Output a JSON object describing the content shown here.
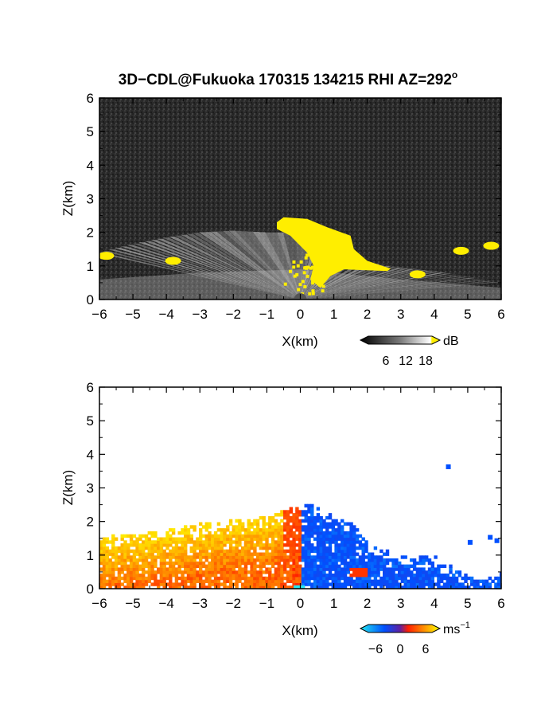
{
  "title": {
    "prefix": "3D−CDL@Fukuoka 170315 134215 RHI AZ=292",
    "degree": "o"
  },
  "chart_data": [
    {
      "type": "heatmap",
      "panel": "backscatter",
      "xlabel": "X(km)",
      "ylabel": "Z(km)",
      "xlim": [
        -6,
        6
      ],
      "ylim": [
        0,
        6
      ],
      "xticks": [
        "−6",
        "−5",
        "−4",
        "−3",
        "−2",
        "−1",
        "0",
        "1",
        "2",
        "3",
        "4",
        "5",
        "6"
      ],
      "yticks": [
        "0",
        "1",
        "2",
        "3",
        "4",
        "5",
        "6"
      ],
      "colorbar": {
        "unit": "dB",
        "ticks": [
          "6",
          "12",
          "18"
        ],
        "range": [
          0,
          20
        ],
        "colors": [
          "#000000",
          "#ffffff",
          "#ffee00"
        ]
      },
      "background_color": "#2a2a2a",
      "saturated_color": "#ffee00",
      "features": {
        "fan_apex_x": 0,
        "fan_apex_z": 0,
        "fan_top": [
          [
            -6,
            1.4
          ],
          [
            -5,
            1.65
          ],
          [
            -4,
            1.85
          ],
          [
            -3,
            2.0
          ],
          [
            -2,
            2.05
          ],
          [
            -1,
            2.0
          ],
          [
            0,
            2.0
          ],
          [
            1,
            1.6
          ],
          [
            2,
            1.1
          ],
          [
            3,
            0.95
          ],
          [
            4,
            0.85
          ],
          [
            6,
            0.5
          ]
        ],
        "saturated_cloud": [
          [
            -0.7,
            2.3
          ],
          [
            -0.5,
            2.45
          ],
          [
            0.2,
            2.4
          ],
          [
            0.8,
            2.15
          ],
          [
            1.5,
            1.9
          ],
          [
            1.6,
            1.5
          ],
          [
            2.0,
            1.15
          ],
          [
            2.7,
            0.92
          ],
          [
            2.6,
            0.85
          ],
          [
            1.3,
            0.9
          ],
          [
            0.9,
            0.7
          ],
          [
            0.6,
            0.35
          ],
          [
            0.3,
            0.6
          ],
          [
            0.4,
            1.0
          ],
          [
            0.2,
            1.4
          ],
          [
            -0.3,
            1.9
          ],
          [
            -0.7,
            2.1
          ]
        ],
        "saturated_patches": [
          [
            -5.8,
            1.3
          ],
          [
            -3.8,
            1.15
          ],
          [
            3.5,
            0.75
          ],
          [
            4.8,
            1.45
          ],
          [
            5.7,
            1.6
          ]
        ]
      }
    },
    {
      "type": "heatmap",
      "panel": "doppler_velocity",
      "xlabel": "X(km)",
      "ylabel": "Z(km)",
      "xlim": [
        -6,
        6
      ],
      "ylim": [
        0,
        6
      ],
      "xticks": [
        "−6",
        "−5",
        "−4",
        "−3",
        "−2",
        "−1",
        "0",
        "1",
        "2",
        "3",
        "4",
        "5",
        "6"
      ],
      "yticks": [
        "0",
        "1",
        "2",
        "3",
        "4",
        "5",
        "6"
      ],
      "colorbar": {
        "unit": "ms",
        "unit_exp": "−1",
        "ticks": [
          "−6",
          "0",
          "6"
        ],
        "range": [
          -8,
          8
        ],
        "colors": [
          "#22e8f0",
          "#0050ff",
          "#ff2000",
          "#ffff00"
        ]
      },
      "features": {
        "positive_region_top": [
          [
            -6,
            1.5
          ],
          [
            -5,
            1.6
          ],
          [
            -4,
            1.7
          ],
          [
            -3,
            1.9
          ],
          [
            -2,
            2.0
          ],
          [
            -1,
            2.1
          ],
          [
            -0.5,
            2.3
          ],
          [
            0,
            2.55
          ]
        ],
        "negative_region_top": [
          [
            0,
            2.5
          ],
          [
            0.5,
            2.4
          ],
          [
            1,
            2.1
          ],
          [
            1.5,
            1.9
          ],
          [
            2,
            1.3
          ],
          [
            3,
            0.95
          ],
          [
            4,
            0.9
          ],
          [
            4.5,
            0.6
          ],
          [
            5,
            0.3
          ]
        ],
        "isolated_echoes": [
          [
            4.35,
            3.7,
            -5
          ],
          [
            5.0,
            1.45,
            -5
          ],
          [
            5.6,
            1.6,
            -5
          ],
          [
            5.8,
            1.5,
            -5
          ],
          [
            5.95,
            0.5,
            -4
          ]
        ]
      }
    }
  ]
}
